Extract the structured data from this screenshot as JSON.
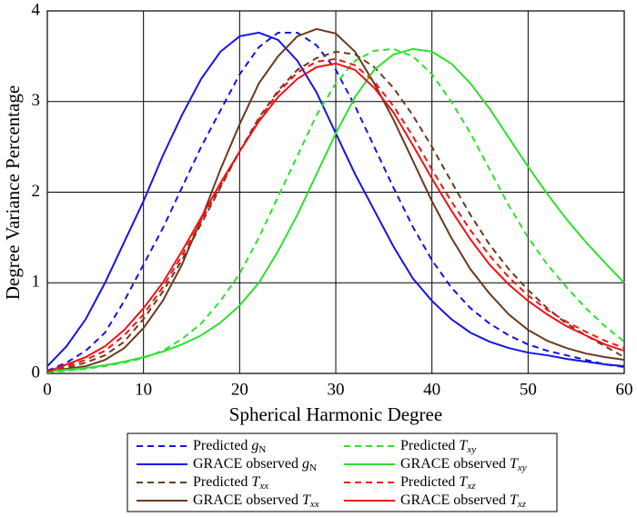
{
  "chart_data": {
    "type": "line",
    "xlabel": "Spherical Harmonic Degree",
    "ylabel": "Degree Variance Percentage",
    "x": [
      0,
      2,
      4,
      6,
      8,
      10,
      12,
      14,
      16,
      18,
      20,
      22,
      24,
      26,
      28,
      30,
      32,
      34,
      36,
      38,
      40,
      42,
      44,
      46,
      48,
      50,
      52,
      54,
      56,
      58,
      60
    ],
    "xlim": [
      0,
      60
    ],
    "xticks": [
      0,
      10,
      20,
      30,
      40,
      50,
      60
    ],
    "ylim": [
      0,
      4
    ],
    "yticks": [
      0,
      1,
      2,
      3,
      4
    ],
    "grid": true,
    "series": [
      {
        "name": "Predicted gN",
        "color": "#1414e6",
        "style": "dashed",
        "values": [
          0.03,
          0.12,
          0.25,
          0.45,
          0.8,
          1.2,
          1.6,
          2.05,
          2.5,
          2.9,
          3.3,
          3.6,
          3.76,
          3.76,
          3.62,
          3.35,
          2.95,
          2.5,
          2.05,
          1.62,
          1.25,
          0.95,
          0.72,
          0.55,
          0.42,
          0.32,
          0.25,
          0.2,
          0.15,
          0.1,
          0.07
        ]
      },
      {
        "name": "GRACE observed gN",
        "color": "#1414e6",
        "style": "solid",
        "values": [
          0.08,
          0.3,
          0.6,
          1.0,
          1.45,
          1.9,
          2.4,
          2.85,
          3.25,
          3.55,
          3.72,
          3.76,
          3.68,
          3.45,
          3.1,
          2.65,
          2.2,
          1.8,
          1.4,
          1.05,
          0.8,
          0.6,
          0.45,
          0.35,
          0.28,
          0.23,
          0.2,
          0.16,
          0.13,
          0.1,
          0.08
        ]
      },
      {
        "name": "Predicted Txx",
        "color": "#6b3a1f",
        "style": "dashed",
        "values": [
          0.02,
          0.06,
          0.12,
          0.2,
          0.35,
          0.6,
          0.9,
          1.25,
          1.65,
          2.05,
          2.45,
          2.82,
          3.12,
          3.35,
          3.48,
          3.55,
          3.52,
          3.38,
          3.15,
          2.85,
          2.5,
          2.12,
          1.75,
          1.42,
          1.15,
          0.92,
          0.72,
          0.55,
          0.42,
          0.3,
          0.18
        ]
      },
      {
        "name": "GRACE observed Txx",
        "color": "#6b3a1f",
        "style": "solid",
        "values": [
          0.02,
          0.05,
          0.08,
          0.15,
          0.28,
          0.5,
          0.8,
          1.2,
          1.7,
          2.25,
          2.75,
          3.2,
          3.5,
          3.72,
          3.8,
          3.75,
          3.55,
          3.2,
          2.8,
          2.35,
          1.9,
          1.5,
          1.15,
          0.88,
          0.65,
          0.48,
          0.36,
          0.28,
          0.22,
          0.18,
          0.15
        ]
      },
      {
        "name": "Predicted Txy",
        "color": "#2ee02e",
        "style": "dashed",
        "values": [
          0.01,
          0.03,
          0.05,
          0.08,
          0.12,
          0.17,
          0.25,
          0.38,
          0.55,
          0.8,
          1.1,
          1.5,
          1.95,
          2.4,
          2.85,
          3.2,
          3.45,
          3.56,
          3.58,
          3.5,
          3.3,
          3.0,
          2.65,
          2.25,
          1.85,
          1.5,
          1.2,
          0.95,
          0.72,
          0.52,
          0.35
        ]
      },
      {
        "name": "GRACE observed Txy",
        "color": "#2ee02e",
        "style": "solid",
        "values": [
          0.02,
          0.04,
          0.06,
          0.09,
          0.13,
          0.18,
          0.24,
          0.32,
          0.42,
          0.56,
          0.75,
          1.0,
          1.35,
          1.75,
          2.2,
          2.65,
          3.05,
          3.35,
          3.52,
          3.58,
          3.55,
          3.42,
          3.2,
          2.92,
          2.6,
          2.28,
          1.98,
          1.7,
          1.45,
          1.22,
          1.0
        ]
      },
      {
        "name": "Predicted Txz",
        "color": "#ee1414",
        "style": "dashed",
        "values": [
          0.02,
          0.08,
          0.15,
          0.25,
          0.42,
          0.65,
          0.95,
          1.3,
          1.68,
          2.07,
          2.45,
          2.8,
          3.1,
          3.32,
          3.44,
          3.47,
          3.4,
          3.22,
          2.95,
          2.62,
          2.25,
          1.9,
          1.58,
          1.3,
          1.06,
          0.86,
          0.7,
          0.57,
          0.46,
          0.36,
          0.28
        ]
      },
      {
        "name": "GRACE observed Txz",
        "color": "#ee1414",
        "style": "solid",
        "values": [
          0.02,
          0.1,
          0.18,
          0.3,
          0.48,
          0.72,
          1.0,
          1.35,
          1.72,
          2.1,
          2.45,
          2.78,
          3.05,
          3.25,
          3.38,
          3.42,
          3.35,
          3.15,
          2.88,
          2.52,
          2.15,
          1.8,
          1.48,
          1.2,
          0.98,
          0.8,
          0.65,
          0.52,
          0.42,
          0.32,
          0.25
        ]
      }
    ]
  }
}
